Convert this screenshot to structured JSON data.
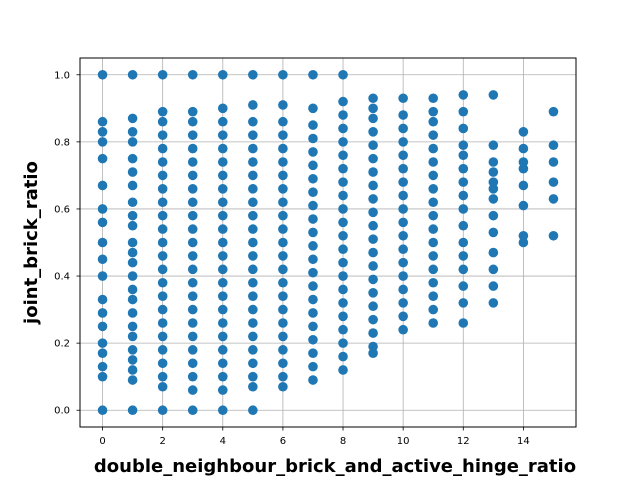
{
  "chart_data": {
    "type": "scatter",
    "title": "",
    "xlabel": "double_neighbour_brick_and_active_hinge_ratio",
    "ylabel": "joint_brick_ratio",
    "xlim": [
      -0.75,
      15.75
    ],
    "ylim": [
      -0.05,
      1.05
    ],
    "xticks": [
      0,
      2,
      4,
      6,
      8,
      10,
      12,
      14
    ],
    "yticks": [
      0.0,
      0.2,
      0.4,
      0.6,
      0.8,
      1.0
    ],
    "xtick_labels": [
      "0",
      "2",
      "4",
      "6",
      "8",
      "10",
      "12",
      "14"
    ],
    "ytick_labels": [
      "0.0",
      "0.2",
      "0.4",
      "0.6",
      "0.8",
      "1.0"
    ],
    "grid": true,
    "marker_color": "#1f77b4",
    "series": [
      {
        "points": [
          [
            0,
            0.0
          ],
          [
            0,
            0.1
          ],
          [
            0,
            0.13
          ],
          [
            0,
            0.17
          ],
          [
            0,
            0.2
          ],
          [
            0,
            0.25
          ],
          [
            0,
            0.29
          ],
          [
            0,
            0.33
          ],
          [
            0,
            0.4
          ],
          [
            0,
            0.45
          ],
          [
            0,
            0.5
          ],
          [
            0,
            0.56
          ],
          [
            0,
            0.6
          ],
          [
            0,
            0.67
          ],
          [
            0,
            0.75
          ],
          [
            0,
            0.8
          ],
          [
            0,
            0.83
          ],
          [
            0,
            0.86
          ],
          [
            0,
            1.0
          ],
          [
            1,
            0.0
          ],
          [
            1,
            0.09
          ],
          [
            1,
            0.12
          ],
          [
            1,
            0.15
          ],
          [
            1,
            0.18
          ],
          [
            1,
            0.22
          ],
          [
            1,
            0.25
          ],
          [
            1,
            0.29
          ],
          [
            1,
            0.33
          ],
          [
            1,
            0.36
          ],
          [
            1,
            0.4
          ],
          [
            1,
            0.44
          ],
          [
            1,
            0.47
          ],
          [
            1,
            0.5
          ],
          [
            1,
            0.55
          ],
          [
            1,
            0.58
          ],
          [
            1,
            0.62
          ],
          [
            1,
            0.67
          ],
          [
            1,
            0.71
          ],
          [
            1,
            0.75
          ],
          [
            1,
            0.8
          ],
          [
            1,
            0.83
          ],
          [
            1,
            0.87
          ],
          [
            1,
            1.0
          ],
          [
            2,
            0.0
          ],
          [
            2,
            0.07
          ],
          [
            2,
            0.1
          ],
          [
            2,
            0.14
          ],
          [
            2,
            0.18
          ],
          [
            2,
            0.22
          ],
          [
            2,
            0.26
          ],
          [
            2,
            0.3
          ],
          [
            2,
            0.34
          ],
          [
            2,
            0.38
          ],
          [
            2,
            0.42
          ],
          [
            2,
            0.46
          ],
          [
            2,
            0.5
          ],
          [
            2,
            0.54
          ],
          [
            2,
            0.58
          ],
          [
            2,
            0.62
          ],
          [
            2,
            0.66
          ],
          [
            2,
            0.7
          ],
          [
            2,
            0.74
          ],
          [
            2,
            0.78
          ],
          [
            2,
            0.82
          ],
          [
            2,
            0.86
          ],
          [
            2,
            0.89
          ],
          [
            2,
            1.0
          ],
          [
            3,
            0.0
          ],
          [
            3,
            0.06
          ],
          [
            3,
            0.1
          ],
          [
            3,
            0.14
          ],
          [
            3,
            0.18
          ],
          [
            3,
            0.22
          ],
          [
            3,
            0.26
          ],
          [
            3,
            0.3
          ],
          [
            3,
            0.34
          ],
          [
            3,
            0.38
          ],
          [
            3,
            0.42
          ],
          [
            3,
            0.46
          ],
          [
            3,
            0.5
          ],
          [
            3,
            0.54
          ],
          [
            3,
            0.58
          ],
          [
            3,
            0.62
          ],
          [
            3,
            0.66
          ],
          [
            3,
            0.7
          ],
          [
            3,
            0.74
          ],
          [
            3,
            0.78
          ],
          [
            3,
            0.82
          ],
          [
            3,
            0.86
          ],
          [
            3,
            0.89
          ],
          [
            3,
            1.0
          ],
          [
            4,
            0.0
          ],
          [
            4,
            0.06
          ],
          [
            4,
            0.1
          ],
          [
            4,
            0.14
          ],
          [
            4,
            0.18
          ],
          [
            4,
            0.22
          ],
          [
            4,
            0.26
          ],
          [
            4,
            0.3
          ],
          [
            4,
            0.34
          ],
          [
            4,
            0.38
          ],
          [
            4,
            0.42
          ],
          [
            4,
            0.46
          ],
          [
            4,
            0.5
          ],
          [
            4,
            0.54
          ],
          [
            4,
            0.58
          ],
          [
            4,
            0.62
          ],
          [
            4,
            0.66
          ],
          [
            4,
            0.7
          ],
          [
            4,
            0.74
          ],
          [
            4,
            0.78
          ],
          [
            4,
            0.82
          ],
          [
            4,
            0.86
          ],
          [
            4,
            0.9
          ],
          [
            4,
            1.0
          ],
          [
            5,
            0.0
          ],
          [
            5,
            0.07
          ],
          [
            5,
            0.1
          ],
          [
            5,
            0.14
          ],
          [
            5,
            0.18
          ],
          [
            5,
            0.22
          ],
          [
            5,
            0.26
          ],
          [
            5,
            0.3
          ],
          [
            5,
            0.34
          ],
          [
            5,
            0.38
          ],
          [
            5,
            0.42
          ],
          [
            5,
            0.46
          ],
          [
            5,
            0.5
          ],
          [
            5,
            0.54
          ],
          [
            5,
            0.58
          ],
          [
            5,
            0.62
          ],
          [
            5,
            0.66
          ],
          [
            5,
            0.7
          ],
          [
            5,
            0.74
          ],
          [
            5,
            0.78
          ],
          [
            5,
            0.82
          ],
          [
            5,
            0.86
          ],
          [
            5,
            0.91
          ],
          [
            5,
            1.0
          ],
          [
            6,
            0.07
          ],
          [
            6,
            0.1
          ],
          [
            6,
            0.14
          ],
          [
            6,
            0.18
          ],
          [
            6,
            0.22
          ],
          [
            6,
            0.26
          ],
          [
            6,
            0.3
          ],
          [
            6,
            0.34
          ],
          [
            6,
            0.38
          ],
          [
            6,
            0.42
          ],
          [
            6,
            0.46
          ],
          [
            6,
            0.5
          ],
          [
            6,
            0.54
          ],
          [
            6,
            0.58
          ],
          [
            6,
            0.62
          ],
          [
            6,
            0.66
          ],
          [
            6,
            0.7
          ],
          [
            6,
            0.74
          ],
          [
            6,
            0.78
          ],
          [
            6,
            0.82
          ],
          [
            6,
            0.86
          ],
          [
            6,
            0.91
          ],
          [
            6,
            1.0
          ],
          [
            7,
            0.09
          ],
          [
            7,
            0.13
          ],
          [
            7,
            0.17
          ],
          [
            7,
            0.21
          ],
          [
            7,
            0.25
          ],
          [
            7,
            0.29
          ],
          [
            7,
            0.33
          ],
          [
            7,
            0.37
          ],
          [
            7,
            0.41
          ],
          [
            7,
            0.45
          ],
          [
            7,
            0.49
          ],
          [
            7,
            0.53
          ],
          [
            7,
            0.57
          ],
          [
            7,
            0.61
          ],
          [
            7,
            0.65
          ],
          [
            7,
            0.69
          ],
          [
            7,
            0.73
          ],
          [
            7,
            0.77
          ],
          [
            7,
            0.81
          ],
          [
            7,
            0.85
          ],
          [
            7,
            0.9
          ],
          [
            7,
            1.0
          ],
          [
            8,
            0.12
          ],
          [
            8,
            0.16
          ],
          [
            8,
            0.2
          ],
          [
            8,
            0.24
          ],
          [
            8,
            0.28
          ],
          [
            8,
            0.32
          ],
          [
            8,
            0.36
          ],
          [
            8,
            0.4
          ],
          [
            8,
            0.44
          ],
          [
            8,
            0.48
          ],
          [
            8,
            0.52
          ],
          [
            8,
            0.56
          ],
          [
            8,
            0.6
          ],
          [
            8,
            0.64
          ],
          [
            8,
            0.68
          ],
          [
            8,
            0.72
          ],
          [
            8,
            0.76
          ],
          [
            8,
            0.8
          ],
          [
            8,
            0.84
          ],
          [
            8,
            0.88
          ],
          [
            8,
            0.92
          ],
          [
            8,
            1.0
          ],
          [
            9,
            0.17
          ],
          [
            9,
            0.19
          ],
          [
            9,
            0.23
          ],
          [
            9,
            0.27
          ],
          [
            9,
            0.31
          ],
          [
            9,
            0.35
          ],
          [
            9,
            0.39
          ],
          [
            9,
            0.43
          ],
          [
            9,
            0.47
          ],
          [
            9,
            0.51
          ],
          [
            9,
            0.55
          ],
          [
            9,
            0.59
          ],
          [
            9,
            0.63
          ],
          [
            9,
            0.67
          ],
          [
            9,
            0.71
          ],
          [
            9,
            0.75
          ],
          [
            9,
            0.79
          ],
          [
            9,
            0.83
          ],
          [
            9,
            0.87
          ],
          [
            9,
            0.9
          ],
          [
            9,
            0.93
          ],
          [
            10,
            0.24
          ],
          [
            10,
            0.28
          ],
          [
            10,
            0.32
          ],
          [
            10,
            0.36
          ],
          [
            10,
            0.4
          ],
          [
            10,
            0.44
          ],
          [
            10,
            0.48
          ],
          [
            10,
            0.52
          ],
          [
            10,
            0.56
          ],
          [
            10,
            0.6
          ],
          [
            10,
            0.64
          ],
          [
            10,
            0.68
          ],
          [
            10,
            0.72
          ],
          [
            10,
            0.76
          ],
          [
            10,
            0.8
          ],
          [
            10,
            0.84
          ],
          [
            10,
            0.88
          ],
          [
            10,
            0.93
          ],
          [
            11,
            0.26
          ],
          [
            11,
            0.3
          ],
          [
            11,
            0.34
          ],
          [
            11,
            0.38
          ],
          [
            11,
            0.42
          ],
          [
            11,
            0.46
          ],
          [
            11,
            0.5
          ],
          [
            11,
            0.54
          ],
          [
            11,
            0.58
          ],
          [
            11,
            0.62
          ],
          [
            11,
            0.66
          ],
          [
            11,
            0.7
          ],
          [
            11,
            0.74
          ],
          [
            11,
            0.78
          ],
          [
            11,
            0.82
          ],
          [
            11,
            0.86
          ],
          [
            11,
            0.89
          ],
          [
            11,
            0.93
          ],
          [
            12,
            0.26
          ],
          [
            12,
            0.32
          ],
          [
            12,
            0.37
          ],
          [
            12,
            0.42
          ],
          [
            12,
            0.46
          ],
          [
            12,
            0.5
          ],
          [
            12,
            0.55
          ],
          [
            12,
            0.6
          ],
          [
            12,
            0.64
          ],
          [
            12,
            0.68
          ],
          [
            12,
            0.72
          ],
          [
            12,
            0.76
          ],
          [
            12,
            0.79
          ],
          [
            12,
            0.84
          ],
          [
            12,
            0.89
          ],
          [
            12,
            0.94
          ],
          [
            13,
            0.32
          ],
          [
            13,
            0.37
          ],
          [
            13,
            0.42
          ],
          [
            13,
            0.47
          ],
          [
            13,
            0.53
          ],
          [
            13,
            0.58
          ],
          [
            13,
            0.63
          ],
          [
            13,
            0.66
          ],
          [
            13,
            0.68
          ],
          [
            13,
            0.71
          ],
          [
            13,
            0.74
          ],
          [
            13,
            0.79
          ],
          [
            13,
            0.94
          ],
          [
            14,
            0.5
          ],
          [
            14,
            0.52
          ],
          [
            14,
            0.61
          ],
          [
            14,
            0.67
          ],
          [
            14,
            0.72
          ],
          [
            14,
            0.74
          ],
          [
            14,
            0.78
          ],
          [
            14,
            0.83
          ],
          [
            15,
            0.52
          ],
          [
            15,
            0.63
          ],
          [
            15,
            0.68
          ],
          [
            15,
            0.74
          ],
          [
            15,
            0.79
          ],
          [
            15,
            0.89
          ]
        ]
      }
    ]
  }
}
